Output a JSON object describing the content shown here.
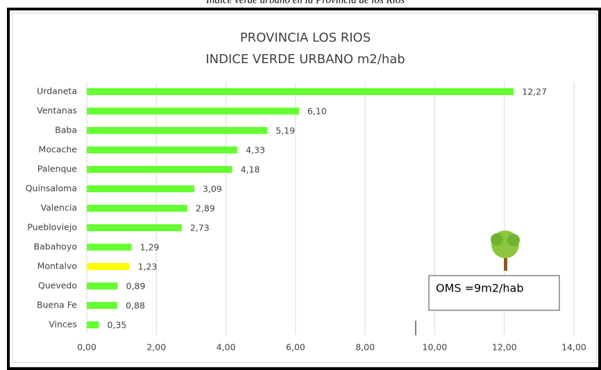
{
  "chart_data": {
    "type": "hbar",
    "caption": "Indice verde urbano en la Provincia de los Rios",
    "title": "PROVINCIA  LOS RIOS",
    "subtitle": "INDICE VERDE URBANO m2/hab",
    "categories": [
      "Urdaneta",
      "Ventanas",
      "Baba",
      "Mocache",
      "Palenque",
      "Quinsaloma",
      "Valencia",
      "Puebloviejo",
      "Babahoyo",
      "Montalvo",
      "Quevedo",
      "Buena Fe",
      "Vinces"
    ],
    "values": [
      12.27,
      6.1,
      5.19,
      4.33,
      4.18,
      3.09,
      2.89,
      2.73,
      1.29,
      1.23,
      0.89,
      0.88,
      0.35
    ],
    "value_labels": [
      "12,27",
      "6,10",
      "5,19",
      "4,33",
      "4,18",
      "3,09",
      "2,89",
      "2,73",
      "1,29",
      "1,23",
      "0,89",
      "0,88",
      "0,35"
    ],
    "colors": [
      "#66ff33",
      "#66ff33",
      "#66ff33",
      "#66ff33",
      "#66ff33",
      "#66ff33",
      "#66ff33",
      "#66ff33",
      "#66ff33",
      "#ffff00",
      "#66ff33",
      "#66ff33",
      "#66ff33"
    ],
    "xlim": [
      0,
      14
    ],
    "xticks": [
      {
        "value": 0,
        "label": "0,00"
      },
      {
        "value": 2,
        "label": "2,00"
      },
      {
        "value": 4,
        "label": "4,00"
      },
      {
        "value": 6,
        "label": "6,00"
      },
      {
        "value": 8,
        "label": "8,00"
      },
      {
        "value": 10,
        "label": "10,00"
      },
      {
        "value": 12,
        "label": "12,00"
      },
      {
        "value": 14,
        "label": "14,00"
      }
    ],
    "grid": true,
    "annotation": "OMS =9m2/hab"
  }
}
